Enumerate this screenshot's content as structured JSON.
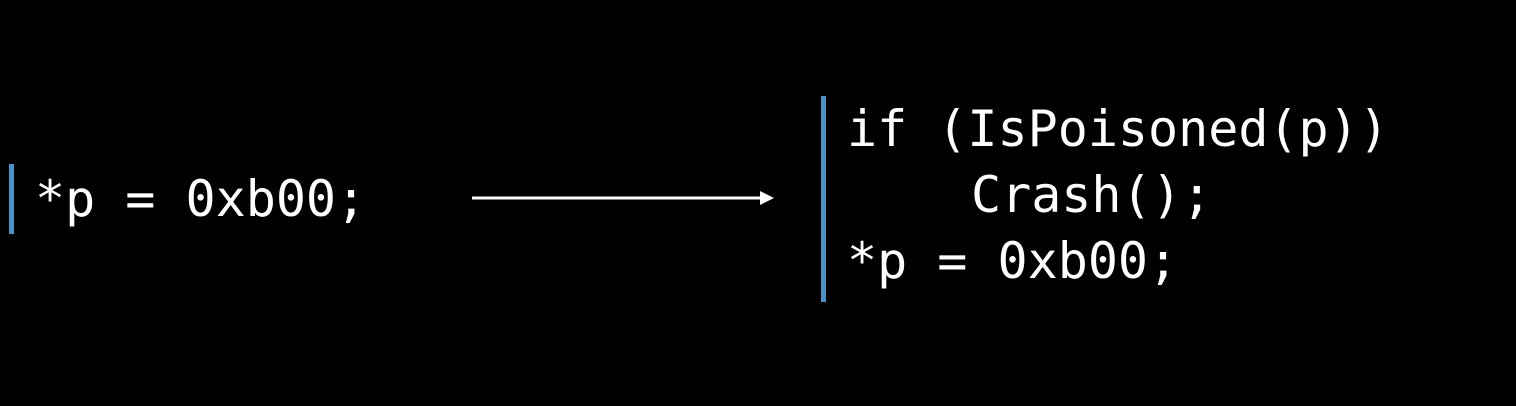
{
  "before": {
    "lines": [
      "*p = 0xb00;"
    ]
  },
  "after": {
    "lines": [
      "if (IsPoisoned(p))",
      "Crash();",
      "*p = 0xb00;"
    ]
  },
  "colors": {
    "background": "#000000",
    "text": "#ffffff",
    "bar_accent": "#4a90c9",
    "arrow": "#ffffff"
  },
  "icons": {
    "arrow": "right-arrow-icon"
  }
}
